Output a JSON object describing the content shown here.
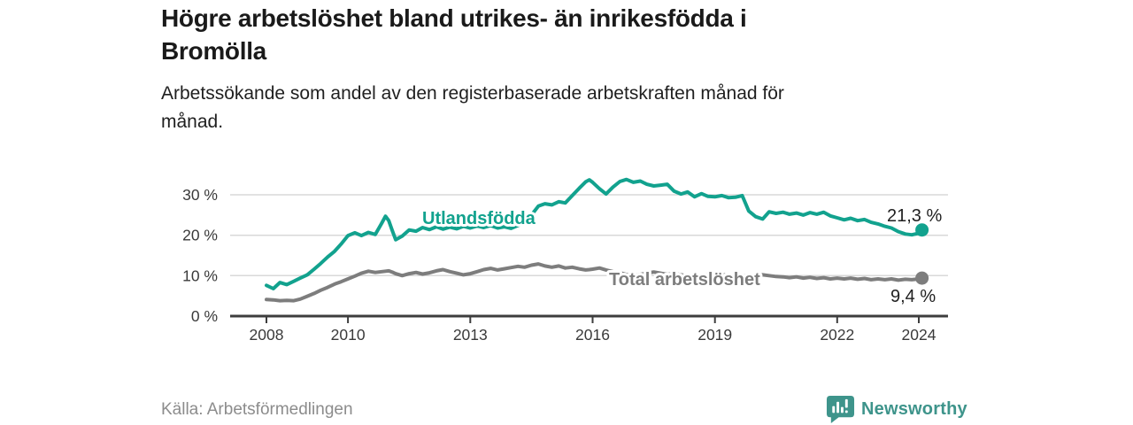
{
  "header": {
    "title_lines": [
      "Högre arbetslöshet bland utrikes- än inrikesfödda i",
      "Bromölla"
    ],
    "subtitle_lines": [
      "Arbetssökande som andel av den registerbaserade arbetskraften månad för",
      "månad."
    ]
  },
  "footer": {
    "source": "Källa: Arbetsförmedlingen",
    "brand": "Newsworthy"
  },
  "colors": {
    "series_foreign_born": "#12a28e",
    "series_total": "#7d7d7d",
    "grid": "#d8d8d8",
    "axis": "#3d3d3d",
    "axis_text": "#3a3a3a",
    "value_text": "#1f1f1f",
    "brand_teal": "#3e948b"
  },
  "chart_data": {
    "type": "line",
    "grid": "horizontal",
    "legend": "inline-labels",
    "xlim": [
      2007.1,
      2024.75
    ],
    "ylim": [
      0,
      35
    ],
    "xticks": {
      "values": [
        2008,
        2010,
        2013,
        2016,
        2019,
        2022,
        2024
      ],
      "labels": [
        "2008",
        "2010",
        "2013",
        "2016",
        "2019",
        "2022",
        "2024"
      ]
    },
    "yticks": {
      "values": [
        0,
        10,
        20,
        30
      ],
      "labels": [
        "0 %",
        "10 %",
        "20 %",
        "30 %"
      ]
    },
    "x": [
      2008.0,
      2008.17,
      2008.33,
      2008.5,
      2008.67,
      2008.83,
      2009.0,
      2009.17,
      2009.33,
      2009.5,
      2009.67,
      2009.83,
      2010.0,
      2010.17,
      2010.33,
      2010.5,
      2010.67,
      2010.83,
      2010.92,
      2011.0,
      2011.08,
      2011.17,
      2011.33,
      2011.5,
      2011.67,
      2011.83,
      2012.0,
      2012.17,
      2012.33,
      2012.5,
      2012.67,
      2012.83,
      2013.0,
      2013.17,
      2013.33,
      2013.5,
      2013.67,
      2013.83,
      2014.0,
      2014.17,
      2014.33,
      2014.5,
      2014.67,
      2014.83,
      2015.0,
      2015.17,
      2015.33,
      2015.5,
      2015.67,
      2015.83,
      2015.92,
      2016.0,
      2016.17,
      2016.33,
      2016.5,
      2016.67,
      2016.83,
      2017.0,
      2017.17,
      2017.33,
      2017.5,
      2017.67,
      2017.83,
      2018.0,
      2018.17,
      2018.33,
      2018.5,
      2018.67,
      2018.83,
      2019.0,
      2019.17,
      2019.33,
      2019.5,
      2019.67,
      2019.83,
      2020.0,
      2020.17,
      2020.33,
      2020.5,
      2020.67,
      2020.83,
      2021.0,
      2021.17,
      2021.33,
      2021.5,
      2021.67,
      2021.83,
      2022.0,
      2022.17,
      2022.33,
      2022.5,
      2022.67,
      2022.83,
      2023.0,
      2023.17,
      2023.33,
      2023.5,
      2023.67,
      2023.83,
      2024.0,
      2024.08
    ],
    "series": [
      {
        "name": "Utlandsfödda",
        "color": "#12a28e",
        "end_label": "21,3 %",
        "end_value": 21.3,
        "values": [
          7.6,
          6.8,
          8.3,
          7.8,
          8.6,
          9.4,
          10.2,
          11.6,
          13.0,
          14.6,
          16.0,
          17.8,
          19.9,
          20.6,
          19.9,
          20.7,
          20.2,
          23.0,
          24.7,
          23.6,
          21.3,
          18.9,
          19.8,
          21.3,
          21.0,
          21.9,
          21.4,
          22.1,
          21.5,
          22.0,
          21.6,
          22.2,
          21.8,
          22.3,
          21.9,
          22.4,
          21.8,
          22.1,
          21.7,
          22.4,
          23.2,
          25.0,
          27.2,
          27.8,
          27.5,
          28.3,
          28.0,
          29.8,
          31.6,
          33.2,
          33.7,
          33.1,
          31.5,
          30.2,
          31.9,
          33.3,
          33.8,
          33.1,
          33.4,
          32.6,
          32.2,
          32.4,
          32.6,
          30.9,
          30.2,
          30.7,
          29.5,
          30.3,
          29.6,
          29.5,
          29.8,
          29.3,
          29.4,
          29.8,
          26.0,
          24.6,
          24.0,
          25.8,
          25.4,
          25.7,
          25.2,
          25.5,
          25.0,
          25.6,
          25.2,
          25.7,
          24.8,
          24.3,
          23.8,
          24.2,
          23.6,
          23.9,
          23.2,
          22.8,
          22.2,
          21.8,
          20.9,
          20.3,
          20.1,
          20.5,
          21.3
        ]
      },
      {
        "name": "Total arbetslöshet",
        "color": "#7d7d7d",
        "end_label": "9,4 %",
        "end_value": 9.4,
        "values": [
          4.1,
          4.0,
          3.8,
          3.9,
          3.8,
          4.2,
          4.9,
          5.6,
          6.4,
          7.1,
          7.9,
          8.5,
          9.2,
          9.9,
          10.6,
          11.1,
          10.8,
          11.0,
          11.1,
          11.2,
          10.9,
          10.5,
          10.0,
          10.5,
          10.8,
          10.4,
          10.7,
          11.2,
          11.5,
          11.0,
          10.6,
          10.2,
          10.5,
          11.0,
          11.5,
          11.8,
          11.4,
          11.7,
          12.0,
          12.3,
          12.1,
          12.6,
          12.9,
          12.4,
          12.1,
          12.4,
          11.9,
          12.1,
          11.7,
          11.4,
          11.5,
          11.6,
          11.9,
          11.4,
          11.0,
          10.7,
          10.3,
          10.0,
          10.3,
          10.6,
          10.9,
          10.6,
          10.3,
          10.5,
          10.2,
          9.9,
          9.6,
          9.9,
          10.2,
          10.0,
          10.3,
          10.0,
          9.8,
          10.0,
          9.7,
          9.9,
          10.2,
          10.0,
          9.8,
          9.7,
          9.5,
          9.7,
          9.4,
          9.6,
          9.3,
          9.5,
          9.2,
          9.4,
          9.2,
          9.4,
          9.1,
          9.3,
          9.0,
          9.2,
          9.0,
          9.2,
          8.9,
          9.1,
          9.0,
          9.2,
          9.4
        ]
      }
    ]
  }
}
